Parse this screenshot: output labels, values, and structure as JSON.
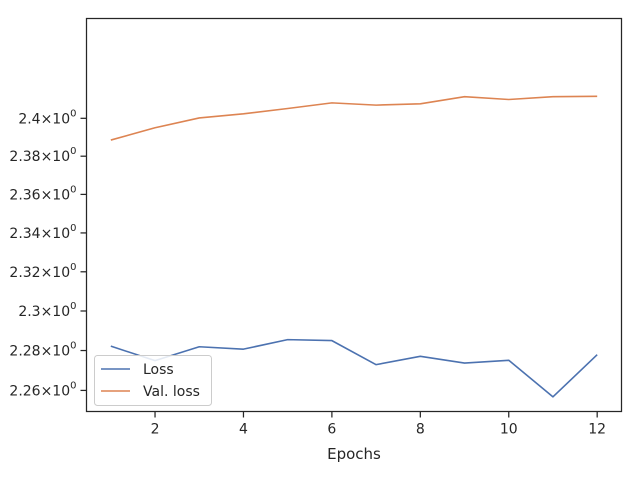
{
  "chart_data": {
    "type": "line",
    "xlabel": "Epochs",
    "ylabel": "",
    "xlim": [
      0.45,
      12.55
    ],
    "ylim": [
      2.2495,
      2.4535
    ],
    "y_scale": "log",
    "grid": false,
    "legend": "lower-left",
    "xticks": [
      2,
      4,
      6,
      8,
      10,
      12
    ],
    "xtick_labels": [
      "2",
      "4",
      "6",
      "8",
      "10",
      "12"
    ],
    "yticks": [
      2.26,
      2.28,
      2.3,
      2.32,
      2.34,
      2.36,
      2.38,
      2.4
    ],
    "ytick_labels": [
      {
        "mantissa": "2.26",
        "base": "10",
        "exp": "0"
      },
      {
        "mantissa": "2.28",
        "base": "10",
        "exp": "0"
      },
      {
        "mantissa": "2.3",
        "base": "10",
        "exp": "0"
      },
      {
        "mantissa": "2.32",
        "base": "10",
        "exp": "0"
      },
      {
        "mantissa": "2.34",
        "base": "10",
        "exp": "0"
      },
      {
        "mantissa": "2.36",
        "base": "10",
        "exp": "0"
      },
      {
        "mantissa": "2.38",
        "base": "10",
        "exp": "0"
      },
      {
        "mantissa": "2.4",
        "base": "10",
        "exp": "0"
      }
    ],
    "x": [
      1,
      2,
      3,
      4,
      5,
      6,
      7,
      8,
      9,
      10,
      11,
      12
    ],
    "series": [
      {
        "name": "Loss",
        "color": "#4c72b0",
        "values": [
          2.2822,
          2.2749,
          2.2819,
          2.2807,
          2.2855,
          2.285,
          2.2729,
          2.2771,
          2.2737,
          2.2751,
          2.2568,
          2.2779
        ]
      },
      {
        "name": "Val. loss",
        "color": "#dd8452",
        "values": [
          2.3885,
          2.395,
          2.4002,
          2.4024,
          2.4052,
          2.4082,
          2.407,
          2.4077,
          2.4115,
          2.41,
          2.4115,
          2.4117
        ]
      }
    ]
  }
}
